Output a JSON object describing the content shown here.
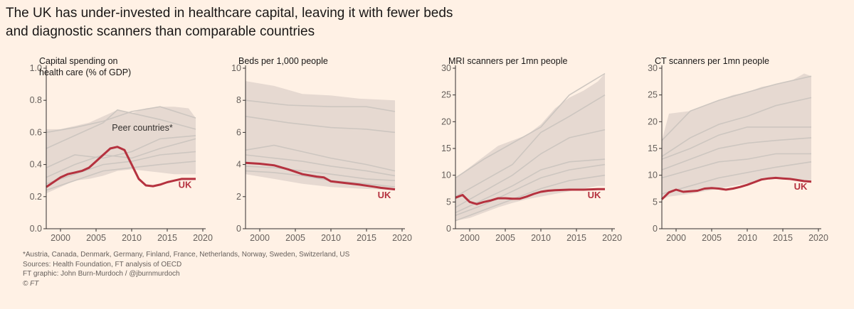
{
  "title_line1": "The UK has under-invested in healthcare capital, leaving it with fewer beds",
  "title_line2": "and diagnostic scanners than comparable countries",
  "colors": {
    "uk": "#b5323f",
    "peer_line": "#cdc6c0",
    "band": "#e6d9d1",
    "axis": "#33302e",
    "background": "#fff1e5"
  },
  "footer": {
    "note": "*Austria, Canada, Denmark, Germany, Finland, France, Netherlands, Norway, Sweden, Switzerland, US",
    "sources": "Sources: Health Foundation, FT analysis of OECD",
    "graphic": "FT graphic: John Burn-Murdoch / @jburnmurdoch",
    "copyright": "© FT"
  },
  "chart_data": [
    {
      "type": "line",
      "title_lines": [
        "Capital spending on",
        "health care (% of GDP)"
      ],
      "xlim": [
        1998,
        2020
      ],
      "xticks": [
        2000,
        2005,
        2010,
        2015,
        2020
      ],
      "ylim": [
        0,
        1.0
      ],
      "yticks": [
        0.0,
        0.2,
        0.4,
        0.6,
        0.8,
        1.0
      ],
      "ytick_labels": [
        "0.0",
        "0.2",
        "0.4",
        "0.6",
        "0.8",
        "1.0"
      ],
      "annotations": [
        {
          "text": "Peer countries*",
          "x": 2011.5,
          "y": 0.61
        }
      ],
      "uk_label": {
        "text": "UK",
        "x": 2017.5,
        "y": 0.255
      },
      "band": {
        "x": [
          1998,
          2000,
          2002,
          2004,
          2006,
          2008,
          2010,
          2012,
          2014,
          2016,
          2018,
          2019
        ],
        "upper": [
          0.62,
          0.62,
          0.64,
          0.66,
          0.7,
          0.74,
          0.72,
          0.75,
          0.76,
          0.76,
          0.75,
          0.69
        ],
        "lower": [
          0.22,
          0.26,
          0.3,
          0.31,
          0.33,
          0.36,
          0.37,
          0.36,
          0.35,
          0.34,
          0.34,
          0.34
        ]
      },
      "peer_series": [
        {
          "x": [
            1998,
            2002,
            2006,
            2010,
            2014,
            2019
          ],
          "values": [
            0.6,
            0.63,
            0.67,
            0.73,
            0.76,
            0.69
          ]
        },
        {
          "x": [
            1998,
            2002,
            2006,
            2008,
            2010,
            2014,
            2019
          ],
          "values": [
            0.5,
            0.58,
            0.66,
            0.74,
            0.72,
            0.68,
            0.62
          ]
        },
        {
          "x": [
            1998,
            2002,
            2006,
            2010,
            2014,
            2019
          ],
          "values": [
            0.38,
            0.46,
            0.44,
            0.48,
            0.56,
            0.58
          ]
        },
        {
          "x": [
            1998,
            2002,
            2006,
            2010,
            2014,
            2019
          ],
          "values": [
            0.32,
            0.4,
            0.46,
            0.44,
            0.5,
            0.56
          ]
        },
        {
          "x": [
            1998,
            2002,
            2006,
            2010,
            2014,
            2019
          ],
          "values": [
            0.28,
            0.34,
            0.4,
            0.42,
            0.46,
            0.48
          ]
        },
        {
          "x": [
            1998,
            2002,
            2006,
            2010,
            2014,
            2019
          ],
          "values": [
            0.24,
            0.3,
            0.36,
            0.38,
            0.4,
            0.42
          ]
        }
      ],
      "uk_series": {
        "name": "UK",
        "x": [
          1998,
          1999,
          2000,
          2001,
          2002,
          2003,
          2004,
          2005,
          2006,
          2007,
          2008,
          2009,
          2010,
          2011,
          2012,
          2013,
          2014,
          2015,
          2016,
          2017,
          2018,
          2019
        ],
        "values": [
          0.26,
          0.29,
          0.32,
          0.34,
          0.35,
          0.36,
          0.38,
          0.42,
          0.46,
          0.5,
          0.51,
          0.49,
          0.4,
          0.31,
          0.27,
          0.265,
          0.275,
          0.29,
          0.3,
          0.31,
          0.31,
          0.31
        ]
      }
    },
    {
      "type": "line",
      "title_lines": [
        "Beds per 1,000 people"
      ],
      "xlim": [
        1998,
        2020
      ],
      "xticks": [
        2000,
        2005,
        2010,
        2015,
        2020
      ],
      "ylim": [
        0,
        10
      ],
      "yticks": [
        0,
        2,
        4,
        6,
        8,
        10
      ],
      "ytick_labels": [
        "0",
        "2",
        "4",
        "6",
        "8",
        "10"
      ],
      "annotations": [],
      "uk_label": {
        "text": "UK",
        "x": 2017.5,
        "y": 1.9
      },
      "band": {
        "x": [
          1998,
          2002,
          2006,
          2010,
          2014,
          2019
        ],
        "upper": [
          9.2,
          8.9,
          8.4,
          8.3,
          8.1,
          8.0
        ],
        "lower": [
          3.4,
          3.1,
          2.8,
          2.6,
          2.5,
          2.4
        ]
      },
      "peer_series": [
        {
          "x": [
            1998,
            2004,
            2010,
            2015,
            2019
          ],
          "values": [
            8.0,
            7.7,
            7.6,
            7.6,
            7.3
          ]
        },
        {
          "x": [
            1998,
            2004,
            2010,
            2015,
            2019
          ],
          "values": [
            7.0,
            6.6,
            6.3,
            6.2,
            6.0
          ]
        },
        {
          "x": [
            1998,
            2002,
            2006,
            2010,
            2015,
            2019
          ],
          "values": [
            4.9,
            5.2,
            4.8,
            4.4,
            4.0,
            3.6
          ]
        },
        {
          "x": [
            1998,
            2002,
            2006,
            2010,
            2015,
            2019
          ],
          "values": [
            4.6,
            4.4,
            4.2,
            3.9,
            3.6,
            3.3
          ]
        },
        {
          "x": [
            1998,
            2002,
            2006,
            2010,
            2015,
            2019
          ],
          "values": [
            3.9,
            3.8,
            3.6,
            3.4,
            3.1,
            3.0
          ]
        },
        {
          "x": [
            1998,
            2002,
            2006,
            2010,
            2015,
            2019
          ],
          "values": [
            3.6,
            3.5,
            3.3,
            3.0,
            2.8,
            2.6
          ]
        }
      ],
      "uk_series": {
        "name": "UK",
        "x": [
          1998,
          2000,
          2002,
          2004,
          2006,
          2008,
          2009,
          2010,
          2012,
          2014,
          2016,
          2017,
          2018,
          2019
        ],
        "values": [
          4.1,
          4.05,
          3.95,
          3.7,
          3.4,
          3.25,
          3.2,
          2.95,
          2.85,
          2.75,
          2.62,
          2.55,
          2.5,
          2.45
        ]
      }
    },
    {
      "type": "line",
      "title_lines": [
        "MRI scanners per 1mn people"
      ],
      "xlim": [
        1998,
        2020
      ],
      "xticks": [
        2000,
        2005,
        2010,
        2015,
        2020
      ],
      "ylim": [
        0,
        30
      ],
      "yticks": [
        0,
        5,
        10,
        15,
        20,
        25,
        30
      ],
      "ytick_labels": [
        "0",
        "5",
        "10",
        "15",
        "20",
        "25",
        "30"
      ],
      "annotations": [],
      "uk_label": {
        "text": "UK",
        "x": 2017.5,
        "y": 5.7
      },
      "band": {
        "x": [
          1998,
          2000,
          2002,
          2004,
          2006,
          2008,
          2010,
          2012,
          2014,
          2016,
          2018,
          2019
        ],
        "upper": [
          9.5,
          11.5,
          13.5,
          15.5,
          16.5,
          17.5,
          19.5,
          22.5,
          24.5,
          25.8,
          27.5,
          29.0
        ],
        "lower": [
          1.5,
          2.0,
          3.0,
          4.0,
          4.8,
          5.5,
          6.0,
          6.5,
          7.0,
          7.5,
          8.0,
          8.0
        ]
      },
      "peer_series": [
        {
          "x": [
            1998,
            2002,
            2006,
            2010,
            2014,
            2019
          ],
          "values": [
            9.5,
            13.0,
            16.0,
            19.0,
            25.0,
            29.0
          ]
        },
        {
          "x": [
            1998,
            2002,
            2006,
            2010,
            2014,
            2019
          ],
          "values": [
            6.0,
            9.0,
            12.0,
            18.0,
            21.0,
            25.0
          ]
        },
        {
          "x": [
            1998,
            2002,
            2006,
            2010,
            2014,
            2019
          ],
          "values": [
            4.0,
            7.0,
            10.0,
            14.0,
            17.0,
            18.5
          ]
        },
        {
          "x": [
            1998,
            2002,
            2006,
            2010,
            2014,
            2019
          ],
          "values": [
            3.0,
            5.5,
            8.0,
            11.0,
            12.5,
            13.0
          ]
        },
        {
          "x": [
            1998,
            2002,
            2006,
            2010,
            2014,
            2019
          ],
          "values": [
            2.5,
            4.5,
            7.0,
            9.5,
            11.0,
            12.0
          ]
        },
        {
          "x": [
            1998,
            2002,
            2006,
            2010,
            2014,
            2019
          ],
          "values": [
            1.5,
            3.5,
            5.5,
            7.5,
            9.0,
            10.0
          ]
        }
      ],
      "uk_series": {
        "name": "UK",
        "x": [
          1998,
          1999,
          2000,
          2001,
          2002,
          2003,
          2004,
          2005,
          2006,
          2007,
          2008,
          2009,
          2010,
          2011,
          2012,
          2014,
          2016,
          2018,
          2019
        ],
        "values": [
          5.8,
          6.3,
          5.0,
          4.6,
          5.0,
          5.3,
          5.7,
          5.7,
          5.6,
          5.6,
          6.0,
          6.5,
          6.9,
          7.1,
          7.2,
          7.3,
          7.3,
          7.4,
          7.4
        ]
      }
    },
    {
      "type": "line",
      "title_lines": [
        "CT scanners per 1mn people"
      ],
      "xlim": [
        1998,
        2020
      ],
      "xticks": [
        2000,
        2005,
        2010,
        2015,
        2020
      ],
      "ylim": [
        0,
        30
      ],
      "yticks": [
        0,
        5,
        10,
        15,
        20,
        25,
        30
      ],
      "ytick_labels": [
        "0",
        "5",
        "10",
        "15",
        "20",
        "25",
        "30"
      ],
      "annotations": [],
      "uk_label": {
        "text": "UK",
        "x": 2017.5,
        "y": 7.3
      },
      "band": {
        "x": [
          1998,
          1999,
          2002,
          2004,
          2006,
          2008,
          2010,
          2012,
          2014,
          2016,
          2018,
          2019
        ],
        "upper": [
          16.5,
          21.5,
          22.0,
          23.0,
          24.0,
          25.0,
          25.5,
          26.5,
          27.0,
          27.5,
          29.0,
          28.5
        ],
        "lower": [
          5.5,
          6.0,
          6.5,
          7.0,
          7.5,
          8.0,
          8.5,
          9.0,
          9.5,
          9.5,
          9.0,
          8.8
        ]
      },
      "peer_series": [
        {
          "x": [
            1998,
            2002,
            2006,
            2010,
            2014,
            2019
          ],
          "values": [
            16.5,
            22.0,
            24.0,
            25.5,
            27.0,
            28.5
          ]
        },
        {
          "x": [
            1998,
            2002,
            2006,
            2010,
            2014,
            2019
          ],
          "values": [
            13.5,
            17.0,
            19.5,
            21.0,
            23.0,
            24.5
          ]
        },
        {
          "x": [
            1998,
            2002,
            2006,
            2010,
            2014,
            2019
          ],
          "values": [
            13.0,
            15.0,
            17.5,
            19.0,
            19.0,
            19.0
          ]
        },
        {
          "x": [
            1998,
            2002,
            2006,
            2010,
            2014,
            2019
          ],
          "values": [
            11.0,
            13.0,
            15.0,
            16.0,
            16.5,
            17.0
          ]
        },
        {
          "x": [
            1998,
            2002,
            2006,
            2010,
            2014,
            2019
          ],
          "values": [
            9.5,
            11.0,
            12.5,
            13.0,
            14.0,
            14.0
          ]
        },
        {
          "x": [
            1998,
            2002,
            2006,
            2010,
            2014,
            2019
          ],
          "values": [
            6.5,
            8.0,
            9.5,
            10.5,
            11.5,
            12.5
          ]
        }
      ],
      "uk_series": {
        "name": "UK",
        "x": [
          1998,
          1999,
          2000,
          2001,
          2002,
          2003,
          2004,
          2005,
          2006,
          2007,
          2008,
          2009,
          2010,
          2011,
          2012,
          2013,
          2014,
          2015,
          2016,
          2017,
          2018,
          2019
        ],
        "values": [
          5.5,
          6.8,
          7.3,
          6.9,
          7.0,
          7.1,
          7.5,
          7.6,
          7.5,
          7.3,
          7.5,
          7.8,
          8.2,
          8.7,
          9.2,
          9.4,
          9.5,
          9.4,
          9.3,
          9.1,
          8.9,
          8.8
        ]
      }
    }
  ]
}
